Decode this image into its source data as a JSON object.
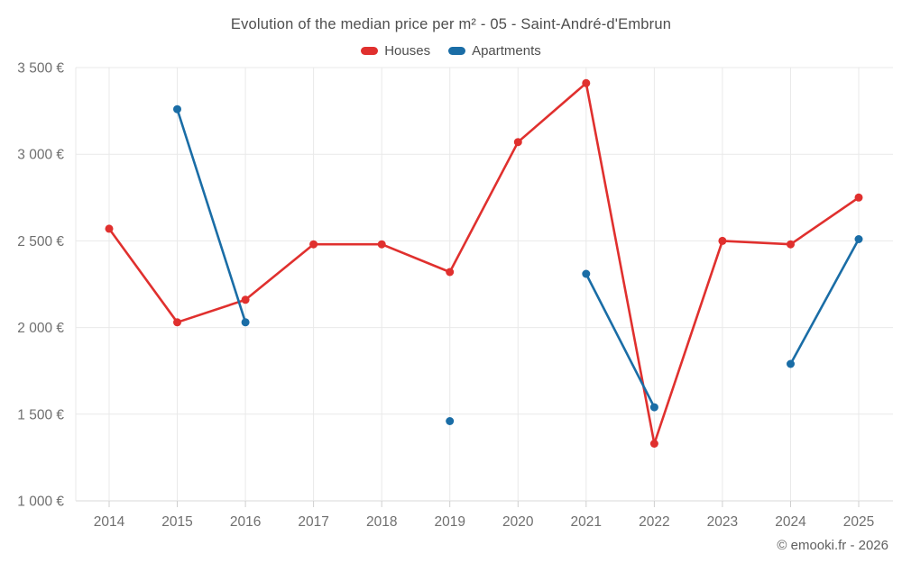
{
  "header": {
    "title": "Evolution of the median price per m² - 05 - Saint-André-d'Embrun"
  },
  "footer": {
    "credit": "© emooki.fr - 2026"
  },
  "colors": {
    "houses": "#e0302e",
    "apartments": "#1a6da6",
    "grid": "#e9e9e9",
    "axis_line": "#d9d9d9",
    "tick": "#cfcfcf",
    "axis_text": "#6f6f6f",
    "title_text": "#4e4e4e"
  },
  "chart_data": {
    "type": "line",
    "title": "Evolution of the median price per m² - 05 - Saint-André-d'Embrun",
    "categories": [
      "2014",
      "2015",
      "2016",
      "2017",
      "2018",
      "2019",
      "2020",
      "2021",
      "2022",
      "2023",
      "2024",
      "2025"
    ],
    "series": [
      {
        "name": "Houses",
        "color": "#e0302e",
        "values": [
          2570,
          2030,
          2160,
          2480,
          2480,
          2320,
          3070,
          3410,
          1330,
          2500,
          2480,
          2750
        ]
      },
      {
        "name": "Apartments",
        "color": "#1a6da6",
        "values": [
          null,
          3260,
          2030,
          null,
          null,
          1460,
          null,
          2310,
          1540,
          null,
          1790,
          2510
        ]
      }
    ],
    "xlabel": "",
    "ylabel": "",
    "ylim": [
      1000,
      3500
    ],
    "ytick_step": 500,
    "ytick_labels": [
      "1 000 €",
      "1 500 €",
      "2 000 €",
      "2 500 €",
      "3 000 €",
      "3 500 €"
    ],
    "grid": true,
    "legend_position": "top",
    "marker_radius": 4.5,
    "line_width": 2.6
  }
}
